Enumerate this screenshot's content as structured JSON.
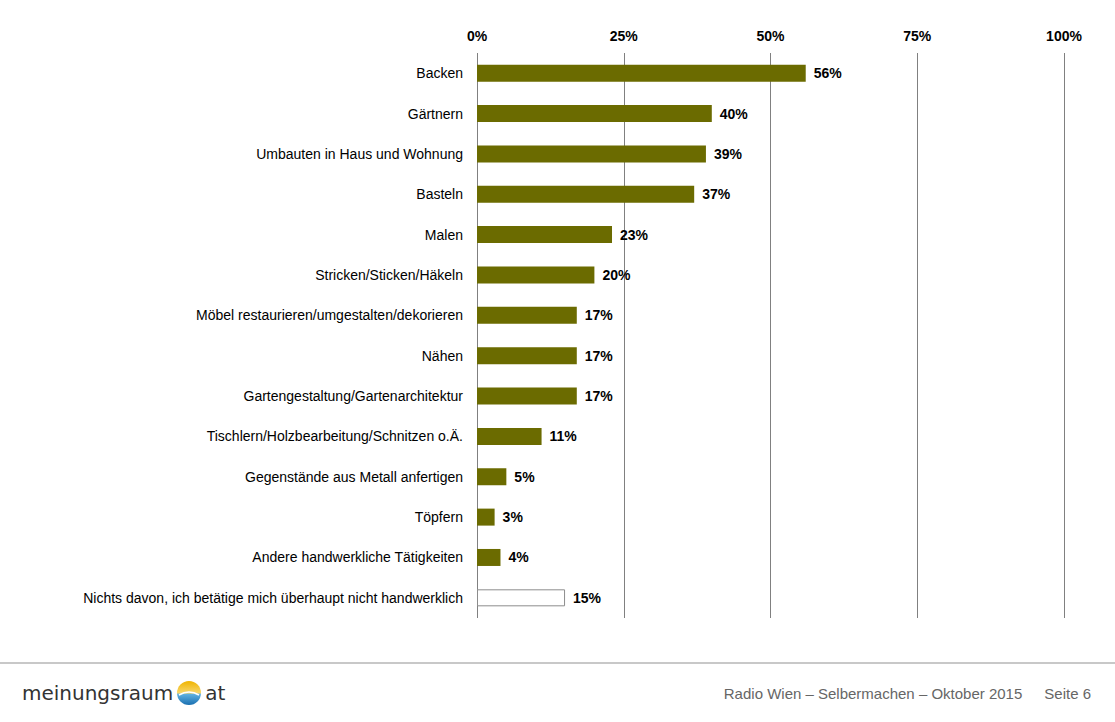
{
  "chart_data": {
    "type": "bar",
    "orientation": "horizontal",
    "categories": [
      "Backen",
      "Gärtnern",
      "Umbauten in Haus und Wohnung",
      "Basteln",
      "Malen",
      "Stricken/Sticken/Häkeln",
      "Möbel restaurieren/umgestalten/dekorieren",
      "Nähen",
      "Gartengestaltung/Gartenarchitektur",
      "Tischlern/Holzbearbeitung/Schnitzen o.Ä.",
      "Gegenstände aus Metall anfertigen",
      "Töpfern",
      "Andere handwerkliche Tätigkeiten",
      "Nichts davon, ich betätige mich überhaupt nicht handwerklich"
    ],
    "values": [
      56,
      40,
      39,
      37,
      23,
      20,
      17,
      17,
      17,
      11,
      5,
      3,
      4,
      15
    ],
    "value_labels": [
      "56%",
      "40%",
      "39%",
      "37%",
      "23%",
      "20%",
      "17%",
      "17%",
      "17%",
      "11%",
      "5%",
      "3%",
      "4%",
      "15%"
    ],
    "colors": [
      "#6b6b00",
      "#6b6b00",
      "#6b6b00",
      "#6b6b00",
      "#6b6b00",
      "#6b6b00",
      "#6b6b00",
      "#6b6b00",
      "#6b6b00",
      "#6b6b00",
      "#6b6b00",
      "#6b6b00",
      "#6b6b00",
      "#ffffff"
    ],
    "xlim": [
      0,
      100
    ],
    "xticks": [
      {
        "value": 0,
        "label": "0%"
      },
      {
        "value": 25,
        "label": "25%"
      },
      {
        "value": 50,
        "label": "50%"
      },
      {
        "value": 75,
        "label": "75%"
      },
      {
        "value": 100,
        "label": "100%"
      }
    ],
    "grid": true,
    "data_labels": true
  },
  "footer": {
    "logo": [
      "meinungsraum",
      "at"
    ],
    "source": "Radio Wien – Selbermachen – Oktober 2015",
    "page": "Seite 6"
  }
}
